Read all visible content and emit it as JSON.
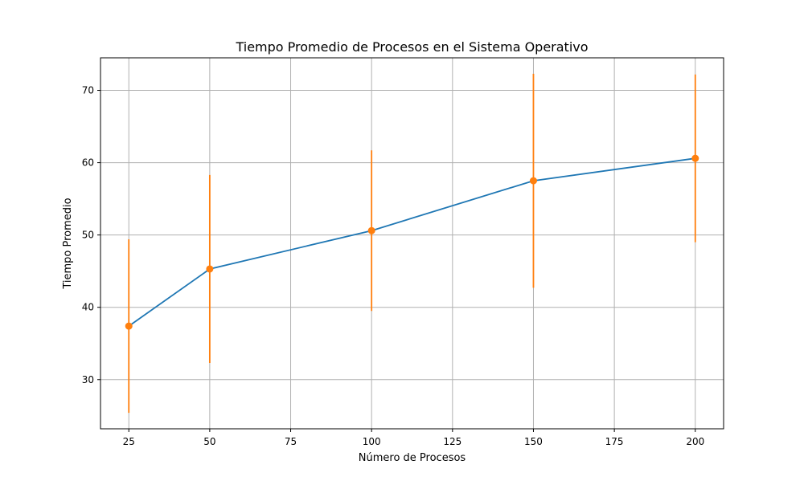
{
  "chart_data": {
    "type": "line",
    "title": "Tiempo Promedio de Procesos en el Sistema Operativo",
    "xlabel": "Número de Procesos",
    "ylabel": "Tiempo Promedio",
    "x": [
      25,
      50,
      100,
      150,
      200
    ],
    "series": [
      {
        "values": [
          37.4,
          45.3,
          50.6,
          57.5,
          60.6
        ],
        "errors": [
          12.0,
          13.0,
          11.1,
          14.8,
          11.6
        ],
        "line_color": "#1f77b4",
        "marker_color": "#ff7f0e"
      }
    ],
    "xlim": [
      16.25,
      208.75
    ],
    "ylim": [
      23.2,
      74.5
    ],
    "xticks": [
      25,
      50,
      75,
      100,
      125,
      150,
      175,
      200
    ],
    "yticks": [
      30,
      40,
      50,
      60,
      70
    ],
    "grid": true,
    "legend": "none"
  }
}
